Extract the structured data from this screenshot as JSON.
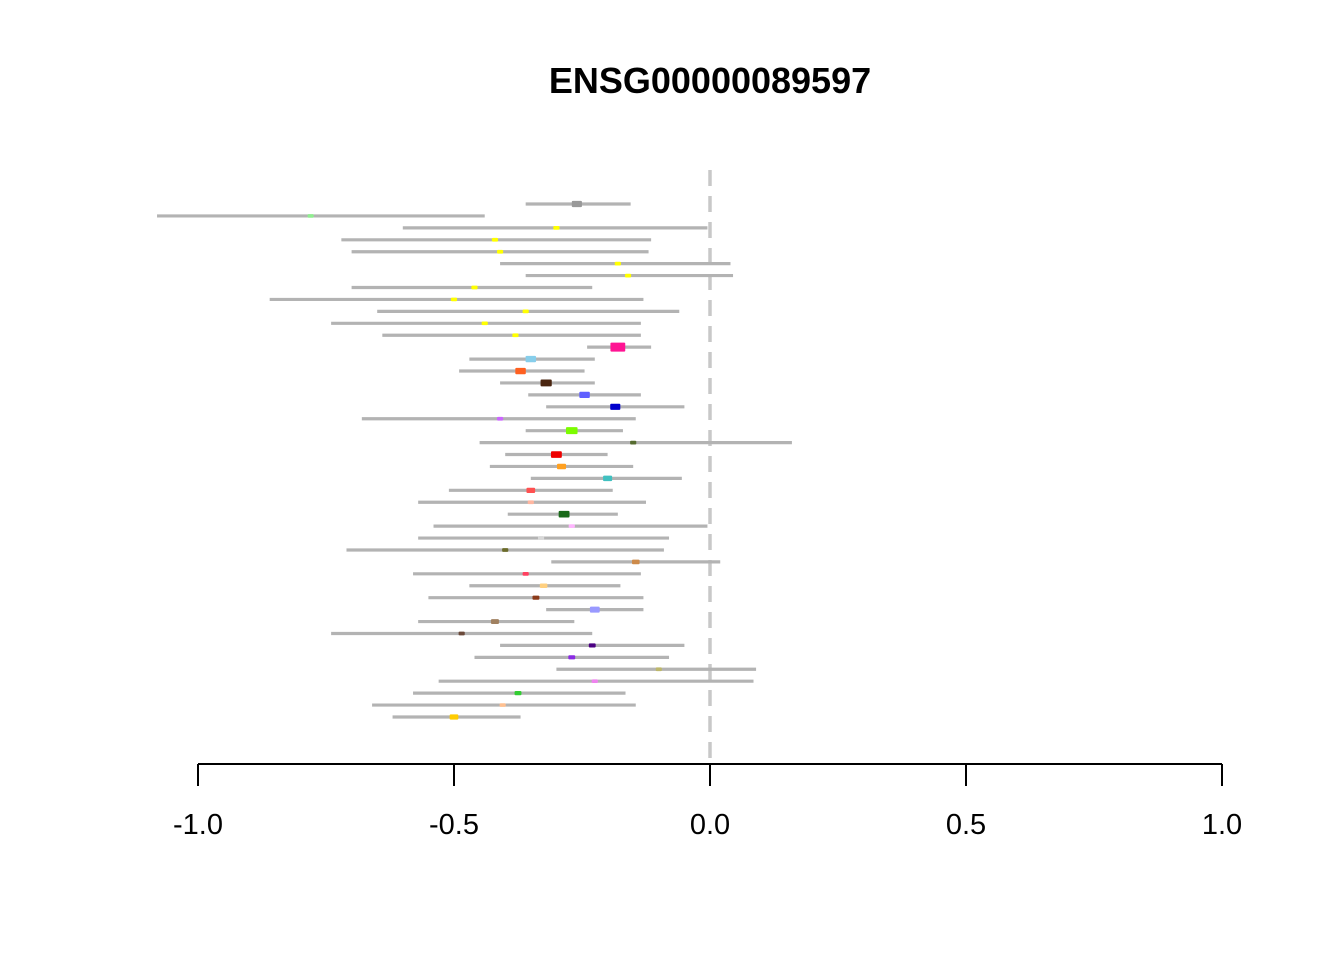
{
  "chart_data": {
    "type": "forest",
    "title": "ENSG00000089597",
    "xlabel": "",
    "ylabel": "",
    "xlim": [
      -1.0,
      1.0
    ],
    "xticks": [
      -1.0,
      -0.5,
      0.0,
      0.5,
      1.0
    ],
    "xtick_labels": [
      "-1.0",
      "-0.5",
      "0.0",
      "0.5",
      "1.0"
    ],
    "reference_line": 0.0,
    "ci_color": "#b3b3b3",
    "reference_color": "#c8c8c8",
    "rows": [
      {
        "est": -0.26,
        "lo": -0.36,
        "hi": -0.155,
        "color": "#999999",
        "w": 1.7
      },
      {
        "est": -0.78,
        "lo": -1.08,
        "hi": -0.44,
        "color": "#90ee90",
        "w": 0.6
      },
      {
        "est": -0.3,
        "lo": -0.6,
        "hi": -0.005,
        "color": "#ffff00",
        "w": 0.6
      },
      {
        "est": -0.42,
        "lo": -0.72,
        "hi": -0.115,
        "color": "#ffff00",
        "w": 0.6
      },
      {
        "est": -0.41,
        "lo": -0.7,
        "hi": -0.12,
        "color": "#ffff00",
        "w": 0.6
      },
      {
        "est": -0.18,
        "lo": -0.41,
        "hi": 0.04,
        "color": "#ffff00",
        "w": 0.6
      },
      {
        "est": -0.16,
        "lo": -0.36,
        "hi": 0.045,
        "color": "#ffff00",
        "w": 0.6
      },
      {
        "est": -0.46,
        "lo": -0.7,
        "hi": -0.23,
        "color": "#ffff00",
        "w": 0.6
      },
      {
        "est": -0.5,
        "lo": -0.86,
        "hi": -0.13,
        "color": "#ffff00",
        "w": 0.6
      },
      {
        "est": -0.36,
        "lo": -0.65,
        "hi": -0.06,
        "color": "#ffff00",
        "w": 0.6
      },
      {
        "est": -0.44,
        "lo": -0.74,
        "hi": -0.135,
        "color": "#ffff00",
        "w": 0.6
      },
      {
        "est": -0.38,
        "lo": -0.64,
        "hi": -0.135,
        "color": "#ffff00",
        "w": 0.6
      },
      {
        "est": -0.18,
        "lo": -0.24,
        "hi": -0.115,
        "color": "#ff1493",
        "w": 3.0
      },
      {
        "est": -0.35,
        "lo": -0.47,
        "hi": -0.225,
        "color": "#87ceeb",
        "w": 1.8
      },
      {
        "est": -0.37,
        "lo": -0.49,
        "hi": -0.245,
        "color": "#ff6020",
        "w": 1.8
      },
      {
        "est": -0.32,
        "lo": -0.41,
        "hi": -0.225,
        "color": "#4a2510",
        "w": 2.0
      },
      {
        "est": -0.245,
        "lo": -0.355,
        "hi": -0.135,
        "color": "#6060ff",
        "w": 1.8
      },
      {
        "est": -0.185,
        "lo": -0.32,
        "hi": -0.05,
        "color": "#0000cd",
        "w": 1.7
      },
      {
        "est": -0.41,
        "lo": -0.68,
        "hi": -0.145,
        "color": "#cc66ff",
        "w": 0.6
      },
      {
        "est": -0.27,
        "lo": -0.36,
        "hi": -0.17,
        "color": "#7cfc00",
        "w": 2.1
      },
      {
        "est": -0.15,
        "lo": -0.45,
        "hi": 0.16,
        "color": "#556b2f",
        "w": 0.6
      },
      {
        "est": -0.3,
        "lo": -0.4,
        "hi": -0.2,
        "color": "#ee0000",
        "w": 1.9
      },
      {
        "est": -0.29,
        "lo": -0.43,
        "hi": -0.15,
        "color": "#ffa020",
        "w": 1.4
      },
      {
        "est": -0.2,
        "lo": -0.35,
        "hi": -0.055,
        "color": "#40c0c0",
        "w": 1.4
      },
      {
        "est": -0.35,
        "lo": -0.51,
        "hi": -0.19,
        "color": "#ff5050",
        "w": 1.3
      },
      {
        "est": -0.35,
        "lo": -0.57,
        "hi": -0.125,
        "color": "#ffb6a0",
        "w": 0.6
      },
      {
        "est": -0.285,
        "lo": -0.395,
        "hi": -0.18,
        "color": "#1a6a1a",
        "w": 1.9
      },
      {
        "est": -0.27,
        "lo": -0.54,
        "hi": -0.005,
        "color": "#ffb6ff",
        "w": 0.6
      },
      {
        "est": -0.33,
        "lo": -0.57,
        "hi": -0.08,
        "color": "#d8d8d8",
        "w": 0.6
      },
      {
        "est": -0.4,
        "lo": -0.71,
        "hi": -0.09,
        "color": "#6b6b2a",
        "w": 0.6
      },
      {
        "est": -0.145,
        "lo": -0.31,
        "hi": 0.02,
        "color": "#cd8a4a",
        "w": 1.0
      },
      {
        "est": -0.36,
        "lo": -0.58,
        "hi": -0.135,
        "color": "#ff4060",
        "w": 0.6
      },
      {
        "est": -0.325,
        "lo": -0.47,
        "hi": -0.175,
        "color": "#ffd080",
        "w": 1.0
      },
      {
        "est": -0.34,
        "lo": -0.55,
        "hi": -0.13,
        "color": "#8b3a1a",
        "w": 0.8
      },
      {
        "est": -0.225,
        "lo": -0.32,
        "hi": -0.13,
        "color": "#9999ff",
        "w": 1.6
      },
      {
        "est": -0.42,
        "lo": -0.57,
        "hi": -0.265,
        "color": "#a08060",
        "w": 1.1
      },
      {
        "est": -0.485,
        "lo": -0.74,
        "hi": -0.23,
        "color": "#6b4a3a",
        "w": 0.6
      },
      {
        "est": -0.23,
        "lo": -0.41,
        "hi": -0.05,
        "color": "#4b0082",
        "w": 0.8
      },
      {
        "est": -0.27,
        "lo": -0.46,
        "hi": -0.08,
        "color": "#8a2be2",
        "w": 0.8
      },
      {
        "est": -0.1,
        "lo": -0.3,
        "hi": 0.09,
        "color": "#bdb76b",
        "w": 0.6
      },
      {
        "est": -0.225,
        "lo": -0.53,
        "hi": 0.085,
        "color": "#ee82ee",
        "w": 0.6
      },
      {
        "est": -0.375,
        "lo": -0.58,
        "hi": -0.165,
        "color": "#32cd32",
        "w": 0.8
      },
      {
        "est": -0.405,
        "lo": -0.66,
        "hi": -0.145,
        "color": "#ffc090",
        "w": 0.6
      },
      {
        "est": -0.5,
        "lo": -0.62,
        "hi": -0.37,
        "color": "#ffcc00",
        "w": 1.3
      }
    ]
  }
}
